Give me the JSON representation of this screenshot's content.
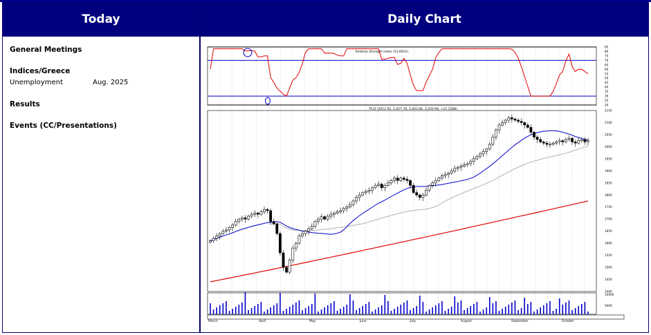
{
  "headers": {
    "today": "Today",
    "daily_chart": "Daily Chart"
  },
  "left": {
    "general_meetings": "General Meetings",
    "indices_greece": "Indices/Greece",
    "unemployment_label": "Unemployment",
    "unemployment_date": "Aug. 2025",
    "results": "Results",
    "events": "Events (CC/Presentations)"
  },
  "chart": {
    "rsi_title": "Relative Strength Index (53.6931)",
    "price_title": "TA.D (2012.91, 2,027.78, 2,003.66, 2,020.96, +21.1588)",
    "rsi_ticks": [
      "85",
      "80",
      "75",
      "70",
      "65",
      "60",
      "55",
      "50",
      "45",
      "40",
      "35",
      "30",
      "25",
      "20"
    ],
    "price_ticks": [
      "2150",
      "2100",
      "2050",
      "2000",
      "1950",
      "1900",
      "1850",
      "1800",
      "1750",
      "1700",
      "1650",
      "1600",
      "1550",
      "1500",
      "1450",
      "1400"
    ],
    "vol_ticks": [
      "10000",
      "5000"
    ],
    "months": [
      "March",
      "April",
      "May",
      "June",
      "July",
      "August",
      "September",
      "October"
    ],
    "colors": {
      "rsi": "#e00000",
      "ma_short": "#0000cc",
      "ma_mid": "#b0b0b0",
      "ma_long": "#e00000",
      "volume": "#0000cc",
      "band": "#0000cc"
    }
  },
  "chart_data": {
    "type": "candlestick",
    "title": "TA.D (2012.91, 2,027.78, 2,003.66, 2,020.96, +21.1588)",
    "price_ylim": [
      1400,
      2150
    ],
    "rsi_ylim": [
      20,
      85
    ],
    "rsi_levels": [
      85,
      70,
      30,
      20
    ],
    "close": [
      1610,
      1620,
      1630,
      1640,
      1650,
      1655,
      1665,
      1675,
      1690,
      1700,
      1705,
      1700,
      1712,
      1720,
      1725,
      1720,
      1730,
      1740,
      1735,
      1690,
      1680,
      1640,
      1560,
      1500,
      1480,
      1530,
      1580,
      1600,
      1630,
      1640,
      1650,
      1660,
      1670,
      1690,
      1700,
      1710,
      1700,
      1712,
      1720,
      1725,
      1730,
      1735,
      1745,
      1750,
      1760,
      1775,
      1790,
      1800,
      1810,
      1815,
      1820,
      1830,
      1840,
      1845,
      1830,
      1840,
      1850,
      1860,
      1870,
      1860,
      1870,
      1865,
      1860,
      1840,
      1810,
      1800,
      1790,
      1800,
      1820,
      1840,
      1850,
      1860,
      1870,
      1880,
      1885,
      1890,
      1900,
      1910,
      1915,
      1920,
      1925,
      1930,
      1940,
      1950,
      1960,
      1970,
      1980,
      1990,
      2010,
      2040,
      2070,
      2090,
      2100,
      2110,
      2120,
      2115,
      2110,
      2105,
      2100,
      2090,
      2080,
      2060,
      2040,
      2030,
      2020,
      2015,
      2010,
      2010,
      2015,
      2020,
      2025,
      2020,
      2030,
      2035,
      2020,
      2015,
      2025,
      2030,
      2020,
      2025
    ]
  }
}
